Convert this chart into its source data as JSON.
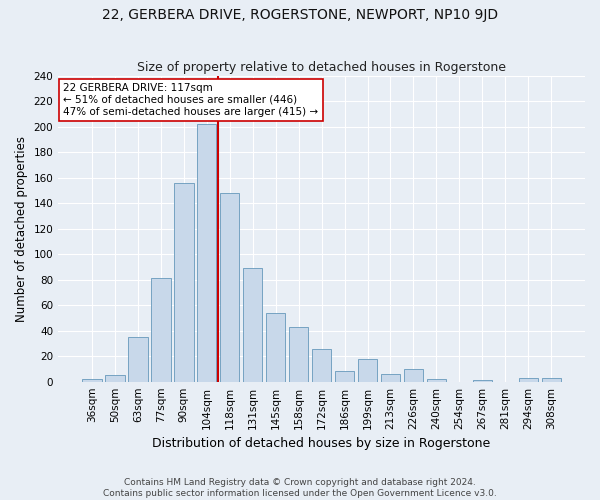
{
  "title": "22, GERBERA DRIVE, ROGERSTONE, NEWPORT, NP10 9JD",
  "subtitle": "Size of property relative to detached houses in Rogerstone",
  "xlabel": "Distribution of detached houses by size in Rogerstone",
  "ylabel": "Number of detached properties",
  "categories": [
    "36sqm",
    "50sqm",
    "63sqm",
    "77sqm",
    "90sqm",
    "104sqm",
    "118sqm",
    "131sqm",
    "145sqm",
    "158sqm",
    "172sqm",
    "186sqm",
    "199sqm",
    "213sqm",
    "226sqm",
    "240sqm",
    "254sqm",
    "267sqm",
    "281sqm",
    "294sqm",
    "308sqm"
  ],
  "values": [
    2,
    5,
    35,
    81,
    156,
    202,
    148,
    89,
    54,
    43,
    26,
    8,
    18,
    6,
    10,
    2,
    0,
    1,
    0,
    3,
    3
  ],
  "bar_color": "#c8d8ea",
  "bar_edge_color": "#6699bb",
  "vline_x_index": 5.5,
  "vline_color": "#cc0000",
  "annotation_line1": "22 GERBERA DRIVE: 117sqm",
  "annotation_line2": "← 51% of detached houses are smaller (446)",
  "annotation_line3": "47% of semi-detached houses are larger (415) →",
  "annotation_box_color": "#ffffff",
  "annotation_box_edge_color": "#cc0000",
  "ylim": [
    0,
    240
  ],
  "yticks": [
    0,
    20,
    40,
    60,
    80,
    100,
    120,
    140,
    160,
    180,
    200,
    220,
    240
  ],
  "title_fontsize": 10,
  "subtitle_fontsize": 9,
  "xlabel_fontsize": 9,
  "ylabel_fontsize": 8.5,
  "tick_fontsize": 7.5,
  "annotation_fontsize": 7.5,
  "footer_line1": "Contains HM Land Registry data © Crown copyright and database right 2024.",
  "footer_line2": "Contains public sector information licensed under the Open Government Licence v3.0.",
  "background_color": "#e8eef5",
  "plot_bg_color": "#e8eef5",
  "grid_color": "#ffffff",
  "footer_fontsize": 6.5
}
